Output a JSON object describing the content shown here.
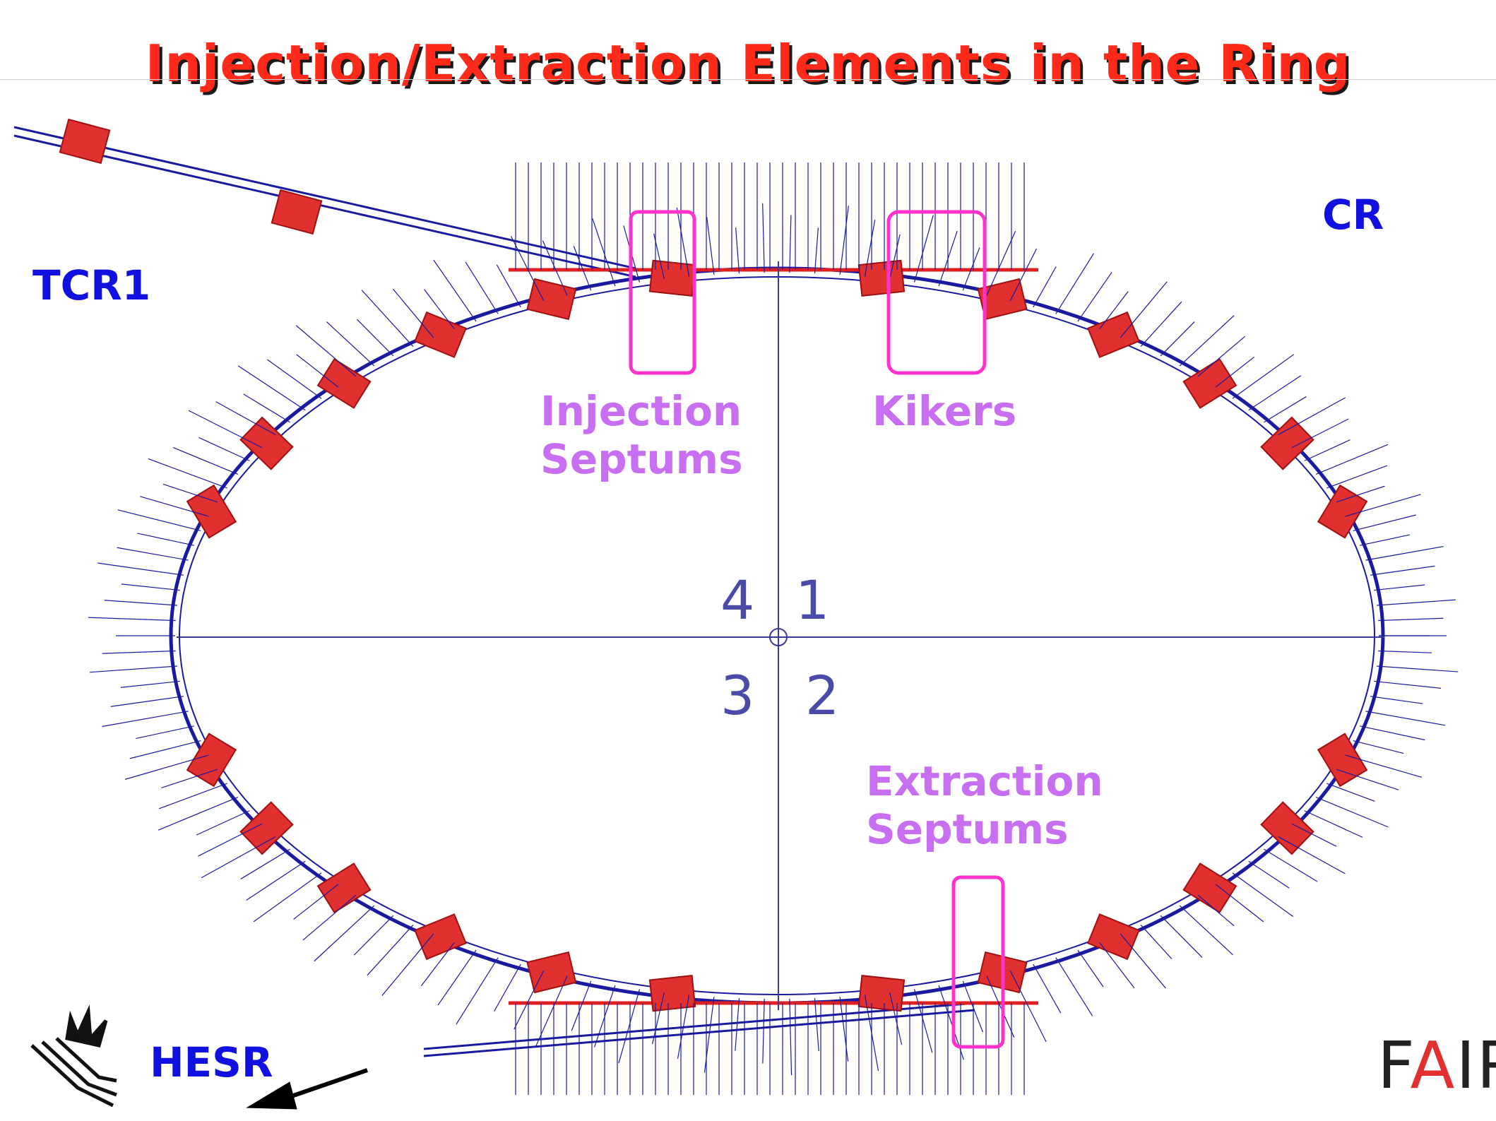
{
  "title": "Injection/Extraction Elements in the Ring",
  "labels": {
    "tcr1": "TCR1",
    "cr": "CR",
    "hesr": "HESR"
  },
  "callouts": {
    "injection_line1": "Injection",
    "injection_line2": "Septums",
    "kikers": "Kikers",
    "extraction_line1": "Extraction",
    "extraction_line2": "Septums"
  },
  "quadrants": {
    "q1": "1",
    "q2": "2",
    "q3": "3",
    "q4": "4"
  },
  "logo": {
    "left": "F",
    "accent": "A",
    "right": "IR"
  },
  "colors": {
    "title": "#ff2a1a",
    "ring": "#1a1aa0",
    "dipole": "#e02020",
    "highlight_box": "#ff33cc",
    "callout": "#c86ef0",
    "region_label": "#1010e0"
  }
}
